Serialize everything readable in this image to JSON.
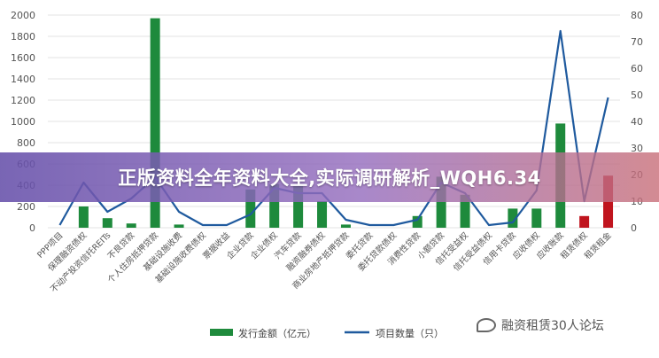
{
  "banner": {
    "text": "正版资料全年资料大全,实际调研解析_WQH6.34"
  },
  "watermark": {
    "text": "融资租赁30人论坛",
    "icon": "chat-bubble-icon"
  },
  "colors": {
    "bar": "#1e8a3c",
    "bar_red": "#c0141e",
    "line": "#1f5a9e",
    "grid": "#e3e3e3",
    "axis_text": "#555555"
  },
  "chart_data": {
    "type": "bar",
    "categories": [
      "PPP项目",
      "保理融资债权",
      "不动产投资信托REITs",
      "不良贷款",
      "个人住房抵押贷款",
      "基础设施收费",
      "基础设施收费债权",
      "票据收益",
      "企业贷款",
      "企业债权",
      "汽车贷款",
      "融资融券债权",
      "商业房地产抵押贷款",
      "委托贷款",
      "委托贷款债权",
      "消费性贷款",
      "小额贷款",
      "信托受益权",
      "信托受益债权",
      "信用卡贷款",
      "应收债权",
      "应收账款",
      "租赁债权",
      "租赁租金"
    ],
    "series": [
      {
        "name": "发行金额（亿元）",
        "type": "bar",
        "axis": "left",
        "values": [
          0,
          200,
          90,
          40,
          1970,
          30,
          0,
          0,
          360,
          410,
          390,
          250,
          30,
          0,
          0,
          110,
          480,
          310,
          0,
          180,
          180,
          980,
          110,
          490
        ],
        "highlight_red_indices": [
          22,
          23
        ]
      },
      {
        "name": "项目数量（只）",
        "type": "line",
        "axis": "right",
        "values": [
          1,
          17,
          6,
          11,
          19,
          6,
          1,
          1,
          5,
          15,
          13,
          13,
          3,
          1,
          1,
          3,
          17,
          13,
          1,
          2,
          14,
          74,
          10,
          49
        ]
      }
    ],
    "y_left": {
      "min": 0,
      "max": 2000,
      "ticks": [
        0,
        200,
        400,
        600,
        800,
        1000,
        1200,
        1400,
        1600,
        1800,
        2000
      ]
    },
    "y_right": {
      "min": 0,
      "max": 80,
      "ticks": [
        0,
        10,
        20,
        30,
        40,
        50,
        60,
        70,
        80
      ]
    },
    "grid": true,
    "legend_position": "bottom"
  }
}
